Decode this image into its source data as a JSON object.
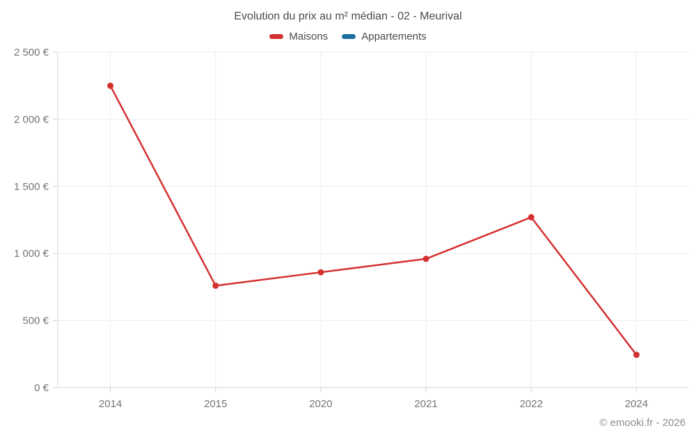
{
  "chart_data": {
    "type": "line",
    "title": "Evolution du prix au m² médian - 02 - Meurival",
    "categories": [
      "2014",
      "2015",
      "2020",
      "2021",
      "2022",
      "2024"
    ],
    "series": [
      {
        "name": "Maisons",
        "color": "#d4302f",
        "values": [
          2250,
          760,
          860,
          960,
          1270,
          245
        ]
      },
      {
        "name": "Appartements",
        "color": "#1c6fa0",
        "values": []
      }
    ],
    "ylim": [
      0,
      2500
    ],
    "yticks": [
      0,
      500,
      1000,
      1500,
      2000,
      2500
    ],
    "ytick_labels": [
      "0 €",
      "500 €",
      "1 000 €",
      "1 500 €",
      "2 000 €",
      "2 500 €"
    ],
    "grid": true,
    "legend_position": "top",
    "colors": {
      "gridline": "#ececec",
      "axis": "#d4d4d4",
      "tick_label": "#757575"
    }
  },
  "footer": {
    "text": "© emooki.fr - 2026"
  }
}
